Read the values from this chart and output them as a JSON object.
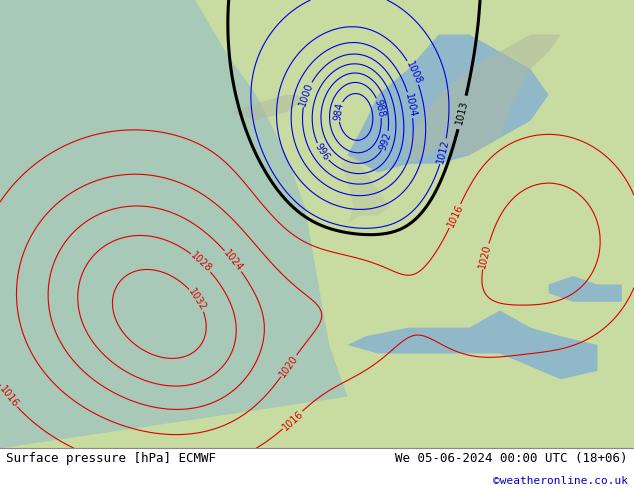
{
  "title_left": "Surface pressure [hPa] ECMWF",
  "title_right": "We 05-06-2024 00:00 UTC (18+06)",
  "copyright": "©weatheronline.co.uk",
  "bg_land": "#c8dba0",
  "bg_ocean": "#a8c8b8",
  "bg_sea2": "#90b8c8",
  "footer_bg": "#ffffff",
  "text_color": "#000000",
  "blue_line_color": "#0000dd",
  "red_line_color": "#dd0000",
  "black_line_color": "#000000",
  "gray_land": "#b0b8a8",
  "label_fontsize": 7,
  "footer_fontsize": 9,
  "xlim": [
    -62,
    42
  ],
  "ylim": [
    24,
    76
  ]
}
